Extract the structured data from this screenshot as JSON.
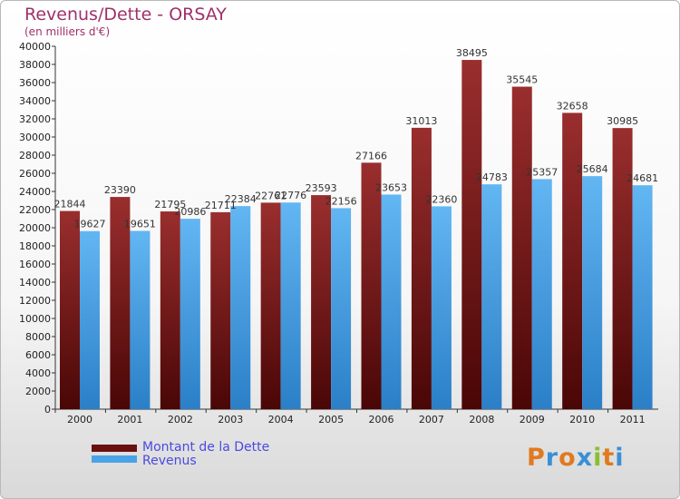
{
  "header": {
    "title": "Revenus/Dette - ORSAY",
    "subtitle": "(en milliers d'€)"
  },
  "colors": {
    "dette": "#7a1414",
    "revenus": "#4aa3e8"
  },
  "legend": {
    "dette_label": "Montant de la Dette",
    "revenus_label": "Revenus"
  },
  "brand": {
    "text": "Proxiti",
    "letters": [
      {
        "ch": "P",
        "color": "#e07a1f"
      },
      {
        "ch": "r",
        "color": "#3a8fd6"
      },
      {
        "ch": "o",
        "color": "#e07a1f"
      },
      {
        "ch": "x",
        "color": "#3a8fd6"
      },
      {
        "ch": "i",
        "color": "#8bbf2f"
      },
      {
        "ch": "t",
        "color": "#e07a1f"
      },
      {
        "ch": "i",
        "color": "#3a8fd6"
      }
    ]
  },
  "chart_data": {
    "type": "bar",
    "title": "Revenus/Dette - ORSAY",
    "subtitle": "(en milliers d'€)",
    "categories": [
      "2000",
      "2001",
      "2002",
      "2003",
      "2004",
      "2005",
      "2006",
      "2007",
      "2008",
      "2009",
      "2010",
      "2011"
    ],
    "series": [
      {
        "name": "Montant de la Dette",
        "values": [
          21844,
          23390,
          21795,
          21711,
          22761,
          23593,
          27166,
          31013,
          38495,
          35545,
          32658,
          30985
        ],
        "labels": [
          "21844",
          "23390",
          "21795",
          "21711",
          "22761",
          "23593",
          "27166",
          "31013",
          "38495",
          "35545",
          "32658",
          "30985"
        ]
      },
      {
        "name": "Revenus",
        "values": [
          19627,
          19651,
          20986,
          22384,
          22776,
          22156,
          23653,
          22360,
          24783,
          25357,
          25684,
          24681
        ],
        "labels": [
          "19627",
          "19651",
          "20986",
          "22384",
          "22776",
          "22156",
          "23653",
          "22360",
          "24783",
          "25357",
          "25684",
          "24681"
        ]
      }
    ],
    "ylim": [
      0,
      40000
    ],
    "yticks": [
      "0",
      "2000",
      "4000",
      "6000",
      "8000",
      "10000",
      "12000",
      "14000",
      "16000",
      "18000",
      "20000",
      "22000",
      "24000",
      "26000",
      "28000",
      "30000",
      "32000",
      "34000",
      "36000",
      "38000",
      "40000"
    ],
    "grid": false,
    "legend_position": "bottom-left"
  }
}
